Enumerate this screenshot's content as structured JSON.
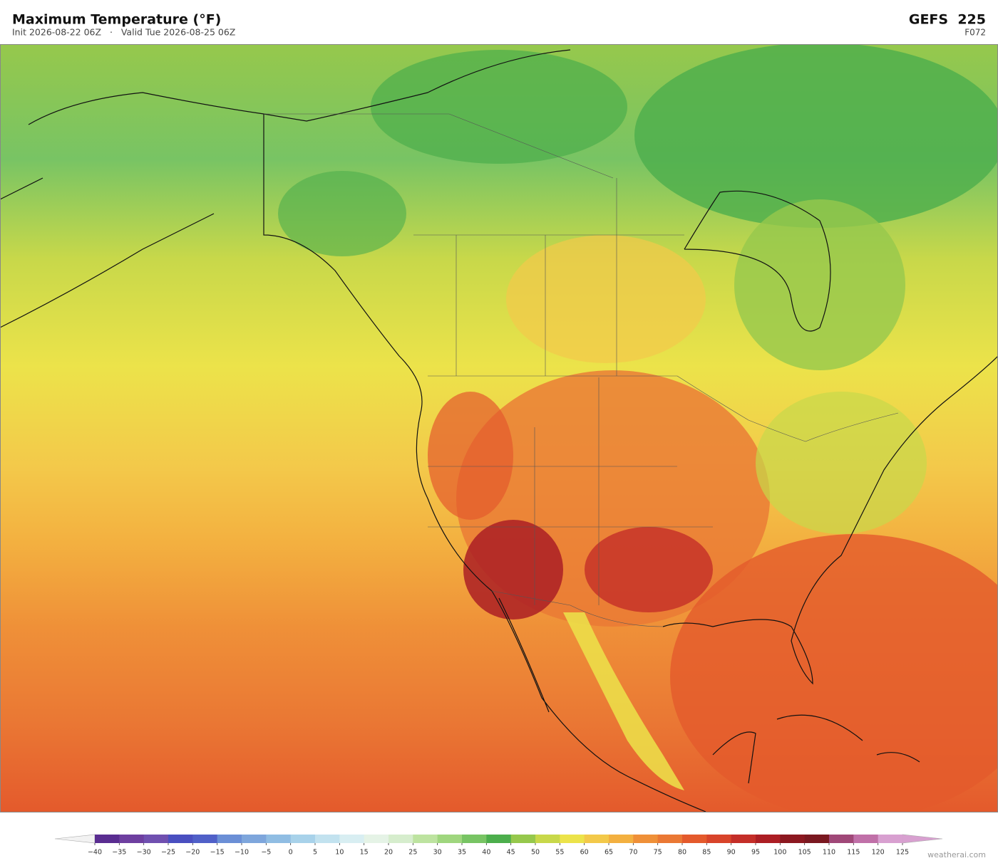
{
  "header": {
    "title": "Maximum Temperature  (°F)",
    "subtitle": "Init 2026-08-22 06Z   ·   Valid Tue 2026-08-25 06Z",
    "model": "GEFS  225",
    "forecast_hour": "F072"
  },
  "colorbar": {
    "ticks": [
      {
        "value": -40,
        "label": "−40"
      },
      {
        "value": -35,
        "label": "−35"
      },
      {
        "value": -30,
        "label": "−30"
      },
      {
        "value": -25,
        "label": "−25"
      },
      {
        "value": -20,
        "label": "−20"
      },
      {
        "value": -15,
        "label": "−15"
      },
      {
        "value": -10,
        "label": "−10"
      },
      {
        "value": -5,
        "label": "−5"
      },
      0,
      5,
      10,
      15,
      20,
      25,
      30,
      35,
      40,
      45,
      50,
      55,
      60,
      65,
      70,
      75,
      80,
      85,
      90,
      95,
      100,
      105,
      110,
      115,
      120,
      125
    ],
    "colors": [
      "#5a2d91",
      "#6e3fa0",
      "#7050b0",
      "#4a4fc0",
      "#5060c8",
      "#6b8fd6",
      "#7ea6dc",
      "#90bde3",
      "#a8d2ea",
      "#c2e2ef",
      "#d8eef2",
      "#e5f3e6",
      "#d6edcd",
      "#bde3a0",
      "#9fd67e",
      "#78c464",
      "#4cae4c",
      "#96c84c",
      "#c8d84a",
      "#ece34a",
      "#f3c94a",
      "#f3b040",
      "#ef9038",
      "#ea7834",
      "#e45a2c",
      "#d8442a",
      "#c42e28",
      "#ac1e24",
      "#8c1820",
      "#7a1820",
      "#a04878",
      "#c070a8",
      "#d8a0d0"
    ],
    "under_color": "#f2f2f2",
    "over_color": "#d8a0d0"
  },
  "footer": {
    "watermark": "weatherai.com"
  }
}
